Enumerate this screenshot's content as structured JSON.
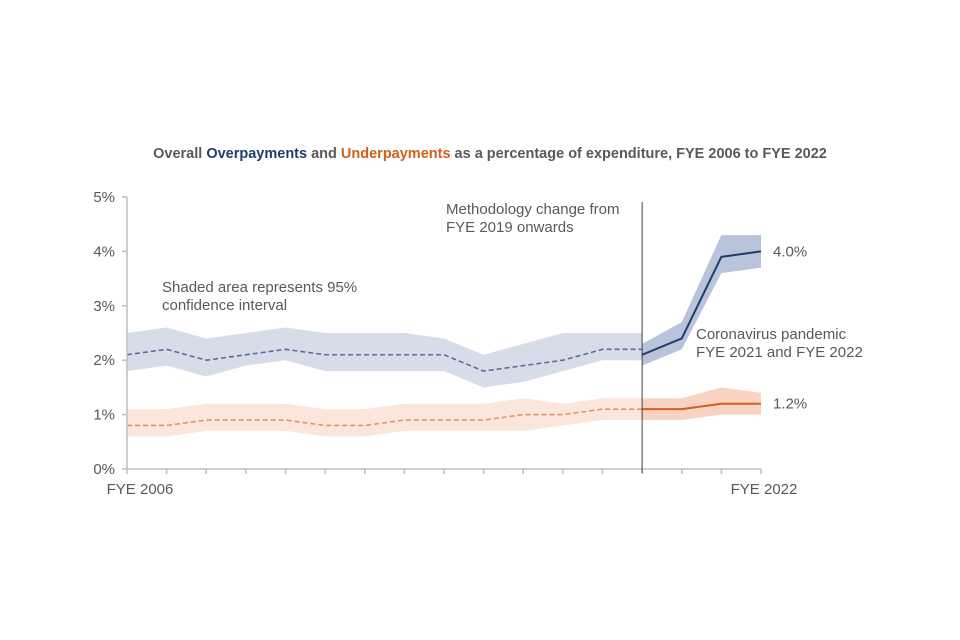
{
  "chart_data": {
    "type": "line",
    "title": {
      "prefix": "Overall",
      "over_word": "Overpayments",
      "middle": "and",
      "under_word": "Underpayments",
      "suffix": "as a percentage of expenditure, FYE 2006 to FYE 2022"
    },
    "xlabel": "",
    "ylabel": "",
    "x": [
      2006,
      2007,
      2008,
      2009,
      2010,
      2011,
      2012,
      2013,
      2014,
      2015,
      2016,
      2017,
      2018,
      2019,
      2020,
      2021,
      2022
    ],
    "x_tick_labels": [
      {
        "x": 2006,
        "label": "FYE 2006"
      },
      {
        "x": 2022,
        "label": "FYE 2022"
      }
    ],
    "xlim": [
      2006,
      2022
    ],
    "ylim": [
      0,
      5
    ],
    "y_ticks": [
      0,
      1,
      2,
      3,
      4,
      5
    ],
    "y_tick_labels": [
      "0%",
      "1%",
      "2%",
      "3%",
      "4%",
      "5%"
    ],
    "grid": false,
    "legend": "none (colored words in title)",
    "methodology_break_x": 2019,
    "series": [
      {
        "name": "Overpayments",
        "color": "#1f3d6b",
        "band_color": "#d3d9e6",
        "old_methodology": {
          "x": [
            2006,
            2007,
            2008,
            2009,
            2010,
            2011,
            2012,
            2013,
            2014,
            2015,
            2016,
            2017,
            2018,
            2019
          ],
          "values": [
            2.1,
            2.2,
            2.0,
            2.1,
            2.2,
            2.1,
            2.1,
            2.1,
            2.1,
            1.8,
            1.9,
            2.0,
            2.2,
            2.2
          ],
          "lower": [
            1.8,
            1.9,
            1.7,
            1.9,
            2.0,
            1.8,
            1.8,
            1.8,
            1.8,
            1.5,
            1.6,
            1.8,
            2.0,
            2.0
          ],
          "upper": [
            2.5,
            2.6,
            2.4,
            2.5,
            2.6,
            2.5,
            2.5,
            2.5,
            2.4,
            2.1,
            2.3,
            2.5,
            2.5,
            2.5
          ],
          "style": "dashed"
        },
        "new_methodology": {
          "x": [
            2019,
            2020,
            2021,
            2022
          ],
          "values": [
            2.1,
            2.4,
            3.9,
            4.0
          ],
          "lower": [
            1.9,
            2.2,
            3.6,
            3.7
          ],
          "upper": [
            2.3,
            2.7,
            4.3,
            4.3
          ],
          "style": "solid"
        },
        "end_label": "4.0%"
      },
      {
        "name": "Underpayments",
        "color": "#d35f1a",
        "band_color": "#fbe3d8",
        "old_methodology": {
          "x": [
            2006,
            2007,
            2008,
            2009,
            2010,
            2011,
            2012,
            2013,
            2014,
            2015,
            2016,
            2017,
            2018,
            2019
          ],
          "values": [
            0.8,
            0.8,
            0.9,
            0.9,
            0.9,
            0.8,
            0.8,
            0.9,
            0.9,
            0.9,
            1.0,
            1.0,
            1.1,
            1.1
          ],
          "lower": [
            0.6,
            0.6,
            0.7,
            0.7,
            0.7,
            0.6,
            0.6,
            0.7,
            0.7,
            0.7,
            0.7,
            0.8,
            0.9,
            0.9
          ],
          "upper": [
            1.1,
            1.1,
            1.2,
            1.2,
            1.2,
            1.1,
            1.1,
            1.2,
            1.2,
            1.2,
            1.3,
            1.2,
            1.3,
            1.3
          ],
          "style": "dashed"
        },
        "new_methodology": {
          "x": [
            2019,
            2020,
            2021,
            2022
          ],
          "values": [
            1.1,
            1.1,
            1.2,
            1.2
          ],
          "lower": [
            0.9,
            0.9,
            1.0,
            1.0
          ],
          "upper": [
            1.3,
            1.3,
            1.5,
            1.4
          ],
          "style": "solid"
        },
        "end_label": "1.2%"
      }
    ],
    "annotations": [
      {
        "id": "ci-note",
        "lines": [
          "Shaded area represents 95%",
          "confidence interval"
        ]
      },
      {
        "id": "methodology-note",
        "lines": [
          "Methodology change from",
          "FYE 2019 onwards"
        ]
      },
      {
        "id": "pandemic-note",
        "lines": [
          "Coronavirus pandemic",
          "FYE 2021 and FYE 2022"
        ]
      }
    ]
  }
}
